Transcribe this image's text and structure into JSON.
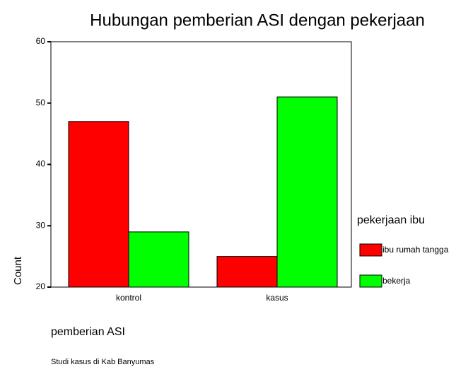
{
  "chart_data": {
    "type": "bar",
    "title": "Hubungan pemberian ASI dengan pekerjaan",
    "x_label": "pemberian ASI",
    "y_label": "Count",
    "legend_title": "pekerjaan ibu",
    "note": "Studi kasus di Kab Banyumas",
    "categories": [
      "kontrol",
      "kasus"
    ],
    "series": [
      {
        "name": "ibu rumah tangga",
        "color": "#ff0000",
        "values": [
          47,
          25
        ]
      },
      {
        "name": "bekerja",
        "color": "#00ff00",
        "values": [
          29,
          51
        ]
      }
    ],
    "ylim": [
      20,
      60
    ],
    "yticks": [
      20,
      30,
      40,
      50,
      60
    ],
    "grid": false,
    "legend": "right"
  }
}
